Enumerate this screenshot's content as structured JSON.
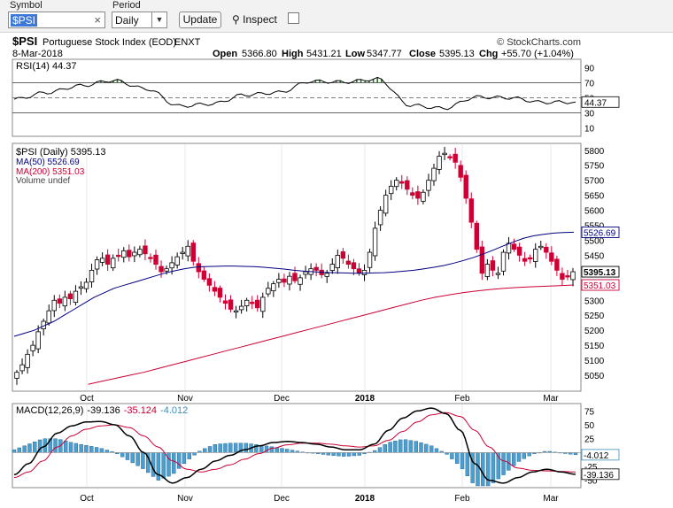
{
  "toolbar": {
    "symbol_label": "Symbol",
    "symbol_value": "$PSI",
    "clear_glyph": "×",
    "period_label": "Period",
    "period_value": "Daily",
    "update_label": "Update",
    "inspect_label": "Inspect",
    "inspect_checked": false
  },
  "header": {
    "symbol": "$PSI",
    "name": "Portuguese Stock Index (EOD)",
    "exchange": "ENXT",
    "copyright": "© StockCharts.com",
    "date": "8-Mar-2018",
    "open_label": "Open",
    "open": "5366.80",
    "high_label": "High",
    "high": "5431.21",
    "low_label": "Low",
    "low": "5347.77",
    "close_label": "Close",
    "close": "5395.13",
    "chg_label": "Chg",
    "chg": "+55.70 (+1.04%)"
  },
  "colors": {
    "up": "#ffffff",
    "down": "#cc0033",
    "candle_outline": "#000000",
    "ma50": "#000080",
    "ma200": "#cc0033",
    "rsi_fill": "#2f6b2f",
    "macd_line": "#000000",
    "signal_line": "#cc0033",
    "histogram": "#4a9fd0"
  },
  "chart_data": [
    {
      "type": "line",
      "panel": "RSI",
      "legend_text": "RSI(14) 44.37",
      "yticks": [
        10,
        30,
        50,
        70,
        90
      ],
      "levels": [
        30,
        70
      ],
      "ylim": [
        0,
        100
      ],
      "last_label": "44.37",
      "x": [
        "2017-09-08",
        "2017-09-22",
        "2017-10-06",
        "2017-10-20",
        "2017-11-03",
        "2017-11-17",
        "2017-12-01",
        "2017-12-15",
        "2017-12-29",
        "2018-01-12",
        "2018-01-19",
        "2018-01-26",
        "2018-02-02",
        "2018-02-09",
        "2018-02-16",
        "2018-02-23",
        "2018-03-02",
        "2018-03-08"
      ],
      "values": [
        48,
        57,
        66,
        73,
        62,
        39,
        42,
        54,
        57,
        72,
        71,
        75,
        40,
        36,
        51,
        50,
        44,
        44.37
      ]
    },
    {
      "type": "candlestick",
      "panel": "Price",
      "legend": {
        "price": "$PSI (Daily) 5395.13",
        "ma50": "MA(50) 5526.69",
        "ma200": "MA(200) 5351.03",
        "volume": "Volume undef"
      },
      "yticks": [
        5050,
        5100,
        5150,
        5200,
        5250,
        5300,
        5350,
        5400,
        5450,
        5500,
        5550,
        5600,
        5650,
        5700,
        5750,
        5800
      ],
      "ylim": [
        5000,
        5820
      ],
      "last_labels": {
        "close": "5395.13",
        "ma50": "5526.69",
        "ma200": "5351.03"
      },
      "x_labels": [
        "Oct",
        "Nov",
        "Dec",
        "2018",
        "Feb",
        "Mar"
      ],
      "closes": [
        5060,
        5085,
        5120,
        5150,
        5195,
        5230,
        5265,
        5300,
        5290,
        5310,
        5305,
        5330,
        5345,
        5360,
        5400,
        5435,
        5440,
        5420,
        5440,
        5450,
        5465,
        5445,
        5460,
        5470,
        5455,
        5440,
        5420,
        5395,
        5405,
        5425,
        5445,
        5460,
        5480,
        5430,
        5395,
        5370,
        5350,
        5330,
        5310,
        5290,
        5270,
        5265,
        5280,
        5300,
        5290,
        5275,
        5310,
        5340,
        5355,
        5370,
        5360,
        5380,
        5365,
        5375,
        5395,
        5405,
        5400,
        5385,
        5390,
        5420,
        5450,
        5440,
        5420,
        5405,
        5390,
        5400,
        5460,
        5540,
        5600,
        5650,
        5680,
        5700,
        5690,
        5670,
        5650,
        5640,
        5660,
        5700,
        5740,
        5780,
        5790,
        5775,
        5760,
        5710,
        5640,
        5560,
        5470,
        5390,
        5420,
        5400,
        5390,
        5460,
        5490,
        5470,
        5450,
        5430,
        5440,
        5470,
        5480,
        5460,
        5430,
        5400,
        5370,
        5380,
        5395.13
      ],
      "ma50": [
        5180,
        5190,
        5200,
        5215,
        5230,
        5250,
        5270,
        5290,
        5310,
        5325,
        5340,
        5350,
        5360,
        5370,
        5380,
        5390,
        5398,
        5405,
        5410,
        5412,
        5413,
        5414,
        5414,
        5413,
        5412,
        5410,
        5407,
        5404,
        5400,
        5397,
        5395,
        5393,
        5392,
        5391,
        5390,
        5390,
        5391,
        5392,
        5394,
        5397,
        5400,
        5405,
        5410,
        5416,
        5424,
        5433,
        5443,
        5455,
        5468,
        5482,
        5495,
        5507,
        5515,
        5520,
        5524,
        5526,
        5526.69
      ],
      "ma200": [
        5020,
        5030,
        5040,
        5050,
        5060,
        5072,
        5084,
        5096,
        5108,
        5120,
        5132,
        5144,
        5156,
        5168,
        5180,
        5192,
        5204,
        5216,
        5228,
        5240,
        5252,
        5264,
        5276,
        5288,
        5300,
        5310,
        5318,
        5325,
        5331,
        5336,
        5340,
        5343,
        5345,
        5347,
        5349,
        5351.03
      ]
    },
    {
      "type": "line",
      "panel": "MACD",
      "legend_text": "MACD(12,26,9)",
      "legend_values": {
        "macd": "-39.136",
        "signal": "-35.124",
        "histogram": "-4.012"
      },
      "yticks": [
        -50,
        -25,
        0,
        25,
        50,
        75
      ],
      "ylim": [
        -60,
        85
      ],
      "last_labels": {
        "histogram": "-4.012",
        "macd": "-39.136"
      },
      "x_labels": [
        "Oct",
        "Nov",
        "Dec",
        "2018",
        "Feb",
        "Mar"
      ],
      "macd": [
        -40,
        -20,
        10,
        35,
        48,
        55,
        56,
        50,
        30,
        0,
        -40,
        -55,
        -45,
        -30,
        -15,
        -5,
        5,
        12,
        18,
        20,
        18,
        15,
        10,
        5,
        5,
        15,
        40,
        62,
        75,
        80,
        70,
        40,
        -20,
        -50,
        -55,
        -45,
        -35,
        -30,
        -35,
        -39.136
      ],
      "signal": [
        -45,
        -35,
        -15,
        10,
        30,
        42,
        48,
        50,
        45,
        30,
        10,
        -15,
        -30,
        -35,
        -30,
        -22,
        -12,
        -2,
        8,
        14,
        17,
        17,
        15,
        12,
        10,
        12,
        22,
        38,
        55,
        68,
        72,
        65,
        40,
        10,
        -15,
        -28,
        -32,
        -33,
        -34,
        -35.124
      ]
    }
  ]
}
